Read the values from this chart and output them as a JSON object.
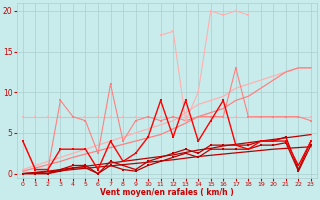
{
  "x": [
    0,
    1,
    2,
    3,
    4,
    5,
    6,
    7,
    8,
    9,
    10,
    11,
    12,
    13,
    14,
    15,
    16,
    17,
    18,
    19,
    20,
    21,
    22,
    23
  ],
  "line_flat_pink": [
    7.0,
    7.0,
    7.0,
    7.0,
    7.0,
    7.0,
    7.0,
    7.0,
    7.0,
    7.0,
    7.0,
    7.0,
    7.0,
    7.0,
    7.0,
    7.0,
    7.0,
    7.0,
    7.0,
    7.0,
    7.0,
    7.0,
    7.0,
    7.0
  ],
  "line_pink_jagged": [
    4.0,
    0.5,
    0.5,
    9.0,
    7.0,
    6.5,
    2.5,
    11.0,
    4.0,
    6.5,
    7.0,
    6.5,
    7.0,
    6.5,
    7.0,
    7.0,
    7.0,
    13.0,
    7.0,
    7.0,
    7.0,
    7.0,
    7.0,
    6.5
  ],
  "line_light_spiky": [
    null,
    null,
    null,
    null,
    null,
    null,
    null,
    null,
    null,
    null,
    null,
    17.0,
    17.5,
    6.5,
    10.0,
    20.0,
    19.5,
    20.0,
    19.5,
    null,
    null,
    null,
    null,
    null
  ],
  "line_slope1": [
    0.5,
    1.0,
    1.5,
    2.0,
    2.5,
    3.0,
    3.5,
    4.0,
    4.5,
    5.0,
    5.5,
    6.0,
    6.5,
    7.5,
    8.5,
    9.0,
    9.5,
    10.5,
    11.0,
    11.5,
    12.0,
    12.5,
    13.0,
    13.0
  ],
  "line_slope2": [
    0.3,
    0.7,
    1.1,
    1.5,
    2.0,
    2.4,
    2.8,
    3.2,
    3.6,
    4.0,
    4.4,
    4.8,
    5.5,
    6.2,
    7.0,
    7.5,
    8.0,
    9.0,
    9.5,
    10.5,
    11.5,
    12.5,
    13.0,
    13.0
  ],
  "line_red_jagged": [
    4.0,
    0.5,
    0.5,
    3.0,
    3.0,
    3.0,
    0.5,
    4.0,
    1.5,
    2.5,
    4.5,
    9.0,
    4.5,
    9.0,
    4.0,
    6.5,
    9.0,
    3.5,
    3.0,
    4.0,
    4.0,
    4.0,
    1.0,
    4.0
  ],
  "line_darkred1": [
    0.0,
    0.0,
    0.0,
    0.5,
    1.0,
    1.0,
    0.0,
    1.5,
    1.0,
    0.5,
    1.5,
    2.0,
    2.5,
    3.0,
    2.5,
    3.5,
    3.5,
    3.5,
    3.5,
    4.0,
    4.0,
    4.5,
    0.5,
    4.0
  ],
  "line_darkred2": [
    0.0,
    0.0,
    0.0,
    0.3,
    0.7,
    0.7,
    0.0,
    1.0,
    0.5,
    0.3,
    1.0,
    1.5,
    2.0,
    2.5,
    2.0,
    3.0,
    3.0,
    3.0,
    3.0,
    3.5,
    3.5,
    3.8,
    0.3,
    3.5
  ],
  "line_slope_low1": [
    0.0,
    0.15,
    0.3,
    0.5,
    0.7,
    0.9,
    1.1,
    1.3,
    1.5,
    1.7,
    1.9,
    2.1,
    2.3,
    2.6,
    2.9,
    3.1,
    3.4,
    3.6,
    3.8,
    4.0,
    4.2,
    4.4,
    4.6,
    4.8
  ],
  "line_slope_low2": [
    0.0,
    0.1,
    0.2,
    0.35,
    0.5,
    0.65,
    0.8,
    0.95,
    1.1,
    1.25,
    1.4,
    1.55,
    1.7,
    1.9,
    2.1,
    2.25,
    2.4,
    2.55,
    2.7,
    2.85,
    3.0,
    3.1,
    3.2,
    3.3
  ],
  "color_light_pink": "#FFB0B0",
  "color_pink": "#FF8080",
  "color_red": "#FF0000",
  "color_dark_red": "#BB0000",
  "color_slope_pink": "#FFB8B8",
  "background_color": "#C8ECEC",
  "grid_color": "#AACFCF",
  "text_color": "#CC0000",
  "yticks": [
    0,
    5,
    10,
    15,
    20
  ],
  "xlabel": "Vent moyen/en rafales ( km/h )",
  "ylim": [
    -0.5,
    21
  ],
  "xlim": [
    -0.5,
    23.5
  ]
}
